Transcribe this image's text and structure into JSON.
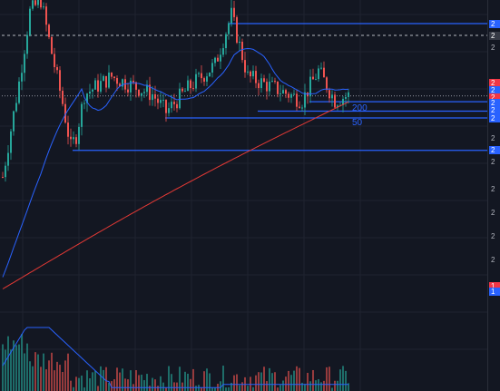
{
  "chart_data": {
    "type": "candlestick",
    "price_range": [
      0,
      100
    ],
    "moving_averages": [
      {
        "label": "200",
        "color": "#e53935"
      },
      {
        "label": "50",
        "color": "#2962ff"
      }
    ],
    "horizontal_levels": [
      {
        "price": 92,
        "color": "#2962ff",
        "start_bar": 83
      },
      {
        "price": 88,
        "color": "#9598a1",
        "start_bar": 0,
        "style": "dashed"
      },
      {
        "price": 67.5,
        "color": "#787b86",
        "start_bar": 0,
        "style": "dotted"
      },
      {
        "price": 65.5,
        "color": "#2962ff",
        "start_bar": 113
      },
      {
        "price": 62.3,
        "color": "#2962ff",
        "start_bar": 94
      },
      {
        "price": 60,
        "color": "#2962ff",
        "start_bar": 60
      },
      {
        "price": 49,
        "color": "#2962ff",
        "start_bar": 26
      }
    ],
    "scale_tags": [
      {
        "text": "2",
        "color": "#2962ff",
        "price": 92
      },
      {
        "text": "2",
        "color": "#363a45",
        "price": 88
      },
      {
        "text": "2",
        "color": "#f23645",
        "price": 72
      },
      {
        "text": "2",
        "color": "#2962ff",
        "price": 69.5
      },
      {
        "text": "2",
        "color": "#f23645",
        "price": 67
      },
      {
        "text": "2",
        "color": "#2962ff",
        "price": 65
      },
      {
        "text": "2",
        "color": "#2962ff",
        "price": 62.5
      },
      {
        "text": "2",
        "color": "#2962ff",
        "price": 60
      },
      {
        "text": "2",
        "color": "#2962ff",
        "price": 49
      },
      {
        "text": "1",
        "color": "#f23645",
        "price": 3
      },
      {
        "text": "1",
        "color": "#2962ff",
        "price": 1
      }
    ],
    "scale_ticks": [
      {
        "text": "2",
        "price": 84
      },
      {
        "text": "2",
        "price": 53
      },
      {
        "text": "2",
        "price": 45
      },
      {
        "text": "2",
        "price": 36
      },
      {
        "text": "2",
        "price": 28
      },
      {
        "text": "2",
        "price": 20
      },
      {
        "text": "2",
        "price": 12
      }
    ],
    "colors": {
      "up": "#26a69a",
      "down": "#ef5350",
      "background": "#131722",
      "grid": "#1f2330"
    }
  }
}
